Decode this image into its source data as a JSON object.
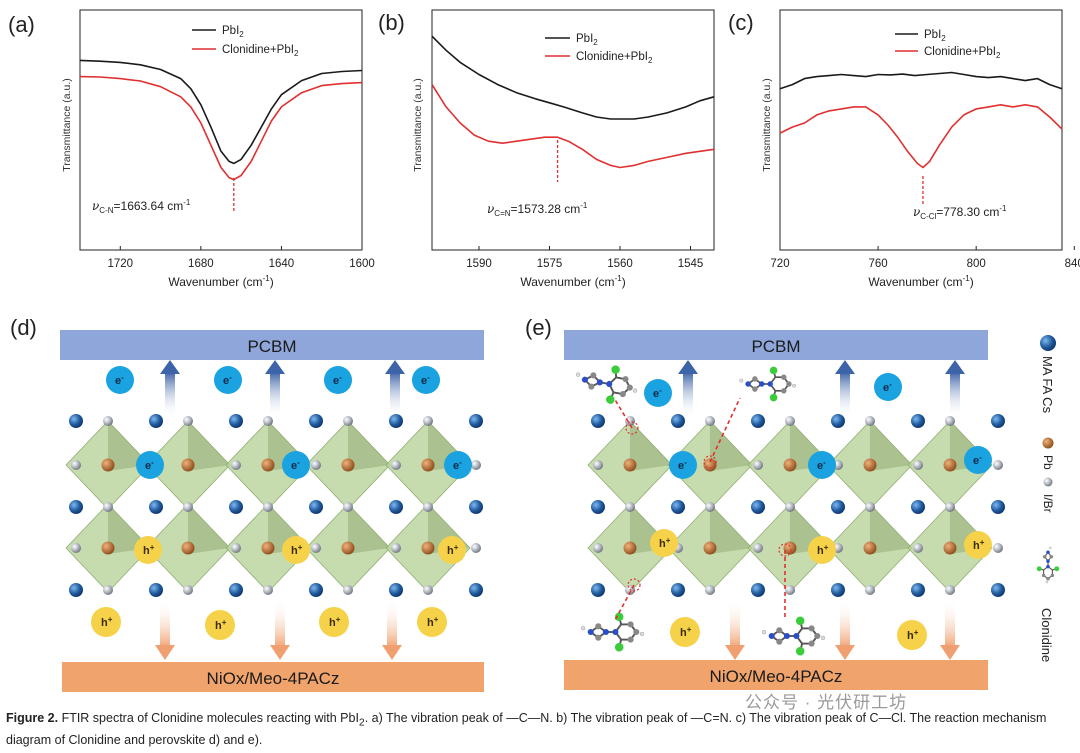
{
  "panel_labels": [
    "(a)",
    "(b)",
    "(c)",
    "(d)",
    "(e)"
  ],
  "colors": {
    "series_pbi2": "#1a1a1a",
    "series_clonidine": "#e03030",
    "pcbm_bar": "#8ea6da",
    "niox_bar": "#f0a46c",
    "electron": "#1aa3e0",
    "hole": "#f5d24a",
    "octahedron": "#b9d39a",
    "cation": "#1f5a9e"
  },
  "chart_data": [
    {
      "type": "line",
      "panel": "(a)",
      "xlabel": "Wavenumber (cm",
      "xlabel_sup": "-1",
      "xlabel_end": ")",
      "ylabel": "Transmittance (a.u.)",
      "xlim": [
        1740,
        1600
      ],
      "ylim": [
        0,
        100
      ],
      "xticks": [
        1720,
        1680,
        1640,
        1600
      ],
      "legend": [
        {
          "label": "PbI",
          "sub": "2",
          "label_end": ""
        },
        {
          "label": "Clonidine+PbI",
          "sub": "2",
          "label_end": ""
        }
      ],
      "annotation": {
        "nu": "ν",
        "sub": "C-N",
        "text": "=1663.64 cm",
        "sup": "-1",
        "x": 1663.64
      },
      "series": [
        {
          "name": "PbI2",
          "x": [
            1740,
            1730,
            1720,
            1710,
            1700,
            1690,
            1685,
            1680,
            1675,
            1670,
            1666,
            1663.64,
            1660,
            1655,
            1650,
            1645,
            1640,
            1630,
            1620,
            1610,
            1600
          ],
          "y": [
            80,
            79.6,
            79,
            77.8,
            75.5,
            71,
            66,
            58,
            47,
            35,
            30,
            29,
            31,
            38,
            47,
            56,
            63,
            70,
            73.5,
            74.5,
            75
          ]
        },
        {
          "name": "Clonidine+PbI2",
          "x": [
            1740,
            1730,
            1720,
            1710,
            1700,
            1690,
            1685,
            1680,
            1675,
            1670,
            1666,
            1663.64,
            1660,
            1655,
            1650,
            1645,
            1640,
            1630,
            1620,
            1610,
            1600
          ],
          "y": [
            72,
            71.8,
            71,
            69.8,
            67,
            62,
            57,
            49,
            38,
            27,
            22,
            21,
            23,
            30,
            40,
            50,
            57,
            64,
            67.5,
            68.5,
            69
          ]
        }
      ]
    },
    {
      "type": "line",
      "panel": "(b)",
      "xlabel": "Wavenumber (cm",
      "xlabel_sup": "-1",
      "xlabel_end": ")",
      "ylabel": "Transmittance (a.u.)",
      "xlim": [
        1600,
        1540
      ],
      "ylim": [
        0,
        100
      ],
      "xticks": [
        1590,
        1575,
        1560,
        1545
      ],
      "legend": [
        {
          "label": "PbI",
          "sub": "2",
          "label_end": ""
        },
        {
          "label": "Clonidine+PbI",
          "sub": "2",
          "label_end": ""
        }
      ],
      "annotation": {
        "nu": "ν",
        "sub": "C=N",
        "text": "=1573.28 cm",
        "sup": "-1",
        "x": 1573.28
      },
      "series": [
        {
          "name": "PbI2",
          "x": [
            1600,
            1597,
            1594,
            1590,
            1586,
            1582,
            1578,
            1575,
            1572,
            1568,
            1565,
            1562,
            1560,
            1557,
            1554,
            1550,
            1546,
            1543,
            1540
          ],
          "y": [
            92,
            85,
            79,
            73,
            68,
            64,
            61,
            59,
            57,
            54,
            52,
            51,
            51,
            51,
            52,
            54,
            57,
            60,
            62
          ]
        },
        {
          "name": "Clonidine+PbI2",
          "x": [
            1600,
            1597,
            1594,
            1591,
            1588,
            1585,
            1582,
            1579,
            1576,
            1573.28,
            1571,
            1568,
            1565,
            1562,
            1560,
            1557,
            1554,
            1550,
            1546,
            1543,
            1540
          ],
          "y": [
            68,
            57,
            49,
            43,
            40,
            39,
            40,
            41,
            42,
            42,
            40,
            36,
            31,
            28,
            27,
            28,
            30,
            32,
            34,
            35,
            36
          ]
        }
      ]
    },
    {
      "type": "line",
      "panel": "(c)",
      "xlabel": "Wavenumber (cm",
      "xlabel_sup": "-1",
      "xlabel_end": ")",
      "ylabel": "Transmittance (a.u.)",
      "xlim": [
        720,
        835
      ],
      "ylim": [
        0,
        100
      ],
      "xticks": [
        720,
        760,
        800,
        840
      ],
      "legend": [
        {
          "label": "PbI",
          "sub": "2",
          "label_end": ""
        },
        {
          "label": "Clonidine+PbI",
          "sub": "2",
          "label_end": ""
        }
      ],
      "annotation": {
        "nu": "ν",
        "sub": "C-Cl",
        "text": "=778.30 cm",
        "sup": "-1",
        "x": 778.3
      },
      "series": [
        {
          "name": "PbI2",
          "x": [
            720,
            725,
            730,
            735,
            740,
            745,
            750,
            755,
            760,
            765,
            770,
            775,
            780,
            785,
            790,
            795,
            800,
            805,
            810,
            815,
            820,
            825,
            830,
            835
          ],
          "y": [
            66,
            68,
            71,
            72,
            72.5,
            73,
            72.5,
            72,
            73,
            72.8,
            73.2,
            72.5,
            73,
            73.5,
            74,
            73,
            72,
            71.5,
            72,
            71,
            70,
            71,
            68,
            66
          ]
        },
        {
          "name": "Clonidine+PbI2",
          "x": [
            720,
            725,
            730,
            735,
            740,
            745,
            750,
            755,
            760,
            764,
            768,
            772,
            776,
            778.3,
            781,
            785,
            790,
            795,
            800,
            805,
            810,
            815,
            820,
            825,
            830,
            835
          ],
          "y": [
            44,
            47,
            49,
            53,
            55,
            56,
            57,
            57,
            53,
            48,
            42,
            35,
            29,
            27,
            30,
            38,
            47,
            53,
            56,
            57,
            58,
            57,
            58,
            57,
            52,
            46
          ]
        }
      ]
    }
  ],
  "schematic": {
    "top_bar": "PCBM",
    "bottom_bar": "NiOx/Meo-4PACz",
    "electron": "e",
    "electron_sup": "-",
    "hole": "h",
    "hole_sup": "+"
  },
  "side_legend": {
    "cations": "MA FA Cs",
    "pb": "Pb",
    "halide": "I/Br",
    "molecule": "Clonidine"
  },
  "watermark": "公众号 · 光伏研工坊",
  "caption": {
    "label": "Figure 2.",
    "text": " FTIR spectra of Clonidine molecules reacting with PbI",
    "sub": "2",
    "text2": ". a) The vibration peak of —C—N. b) The vibration peak of —C=N. c) The vibration peak of C—Cl. The reaction mechanism diagram of Clonidine and perovskite d) and e)."
  }
}
